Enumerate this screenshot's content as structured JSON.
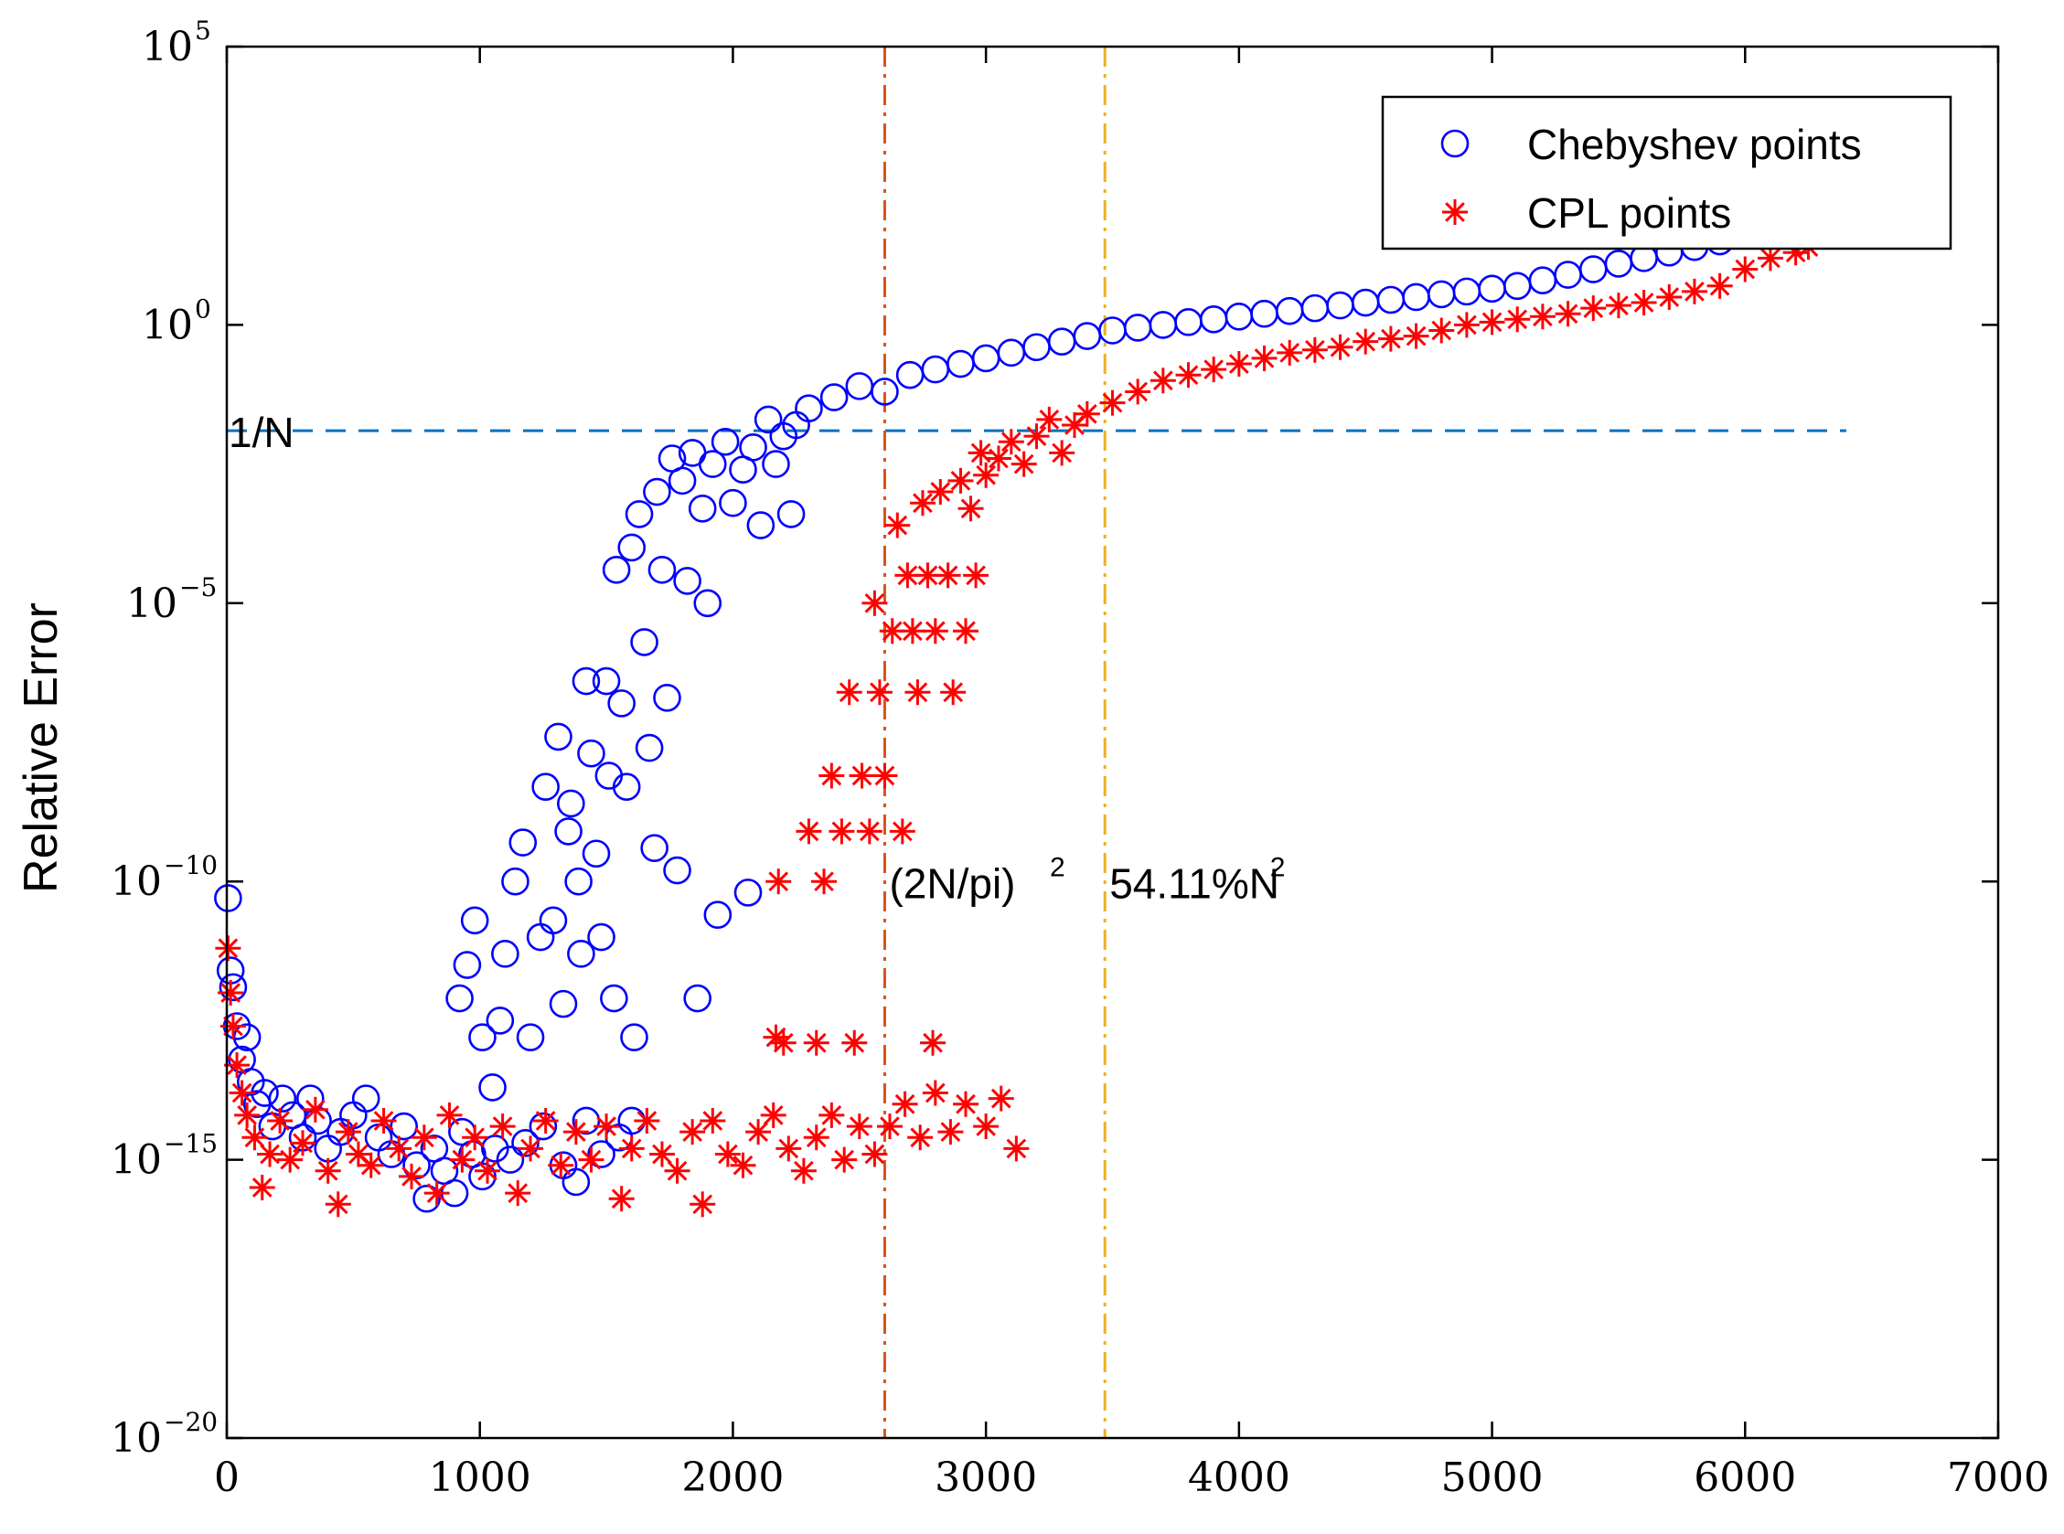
{
  "chart_data": {
    "type": "scatter",
    "title": "",
    "xlabel": "",
    "ylabel": "Relative Error",
    "xlim": [
      0,
      7000
    ],
    "ylim_exponent": [
      -20,
      5
    ],
    "yscale": "log",
    "x_ticks": [
      "0",
      "1000",
      "2000",
      "3000",
      "4000",
      "5000",
      "6000",
      "7000"
    ],
    "y_ticks": [
      {
        "base": "10",
        "exp": "5",
        "value_exp": 5
      },
      {
        "base": "10",
        "exp": "0",
        "value_exp": 0
      },
      {
        "base": "10",
        "exp": "−5",
        "value_exp": -5
      },
      {
        "base": "10",
        "exp": "−10",
        "value_exp": -10
      },
      {
        "base": "10",
        "exp": "−15",
        "value_exp": -15
      },
      {
        "base": "10",
        "exp": "−20",
        "value_exp": -20
      }
    ],
    "legend": {
      "position": "top-right",
      "entries": [
        {
          "label": "Chebyshev points",
          "marker": "circle",
          "color": "#0000ff"
        },
        {
          "label": "CPL points",
          "marker": "asterisk",
          "color": "#ff0000"
        }
      ]
    },
    "reference_lines": [
      {
        "orientation": "horizontal",
        "value_exp": -1.9,
        "style": "dashed",
        "color": "#0072bd",
        "label": "1/N",
        "x_end": 6400
      },
      {
        "orientation": "vertical",
        "value": 2600,
        "style": "dashdot",
        "color": "#d95319",
        "label_main": "(2N/pi)",
        "label_sup": "2"
      },
      {
        "orientation": "vertical",
        "value": 3470,
        "style": "dashdot",
        "color": "#edb120",
        "label_main": "54.11%N",
        "label_sup": "2"
      }
    ],
    "series": [
      {
        "name": "Chebyshev points",
        "marker": "circle",
        "color": "#0000ff",
        "points": [
          [
            5,
            -10.3
          ],
          [
            15,
            -11.6
          ],
          [
            25,
            -11.9
          ],
          [
            40,
            -12.6
          ],
          [
            60,
            -13.2
          ],
          [
            80,
            -12.8
          ],
          [
            95,
            -13.6
          ],
          [
            120,
            -14.0
          ],
          [
            150,
            -13.8
          ],
          [
            180,
            -14.4
          ],
          [
            220,
            -13.9
          ],
          [
            260,
            -14.2
          ],
          [
            300,
            -14.6
          ],
          [
            330,
            -13.9
          ],
          [
            360,
            -14.3
          ],
          [
            400,
            -14.8
          ],
          [
            450,
            -14.5
          ],
          [
            500,
            -14.2
          ],
          [
            550,
            -13.9
          ],
          [
            600,
            -14.6
          ],
          [
            650,
            -14.9
          ],
          [
            700,
            -14.4
          ],
          [
            750,
            -15.1
          ],
          [
            790,
            -15.7
          ],
          [
            820,
            -14.8
          ],
          [
            860,
            -15.2
          ],
          [
            900,
            -15.6
          ],
          [
            930,
            -14.5
          ],
          [
            970,
            -14.9
          ],
          [
            1010,
            -15.3
          ],
          [
            1060,
            -14.8
          ],
          [
            1120,
            -15.0
          ],
          [
            1180,
            -14.7
          ],
          [
            1250,
            -14.4
          ],
          [
            1330,
            -15.1
          ],
          [
            1380,
            -15.4
          ],
          [
            1420,
            -14.3
          ],
          [
            1480,
            -14.9
          ],
          [
            1550,
            -14.6
          ],
          [
            1600,
            -14.3
          ],
          [
            920,
            -12.1
          ],
          [
            950,
            -11.5
          ],
          [
            980,
            -10.7
          ],
          [
            1010,
            -12.8
          ],
          [
            1050,
            -13.7
          ],
          [
            1080,
            -12.5
          ],
          [
            1100,
            -11.3
          ],
          [
            1140,
            -10.0
          ],
          [
            1170,
            -9.3
          ],
          [
            1200,
            -12.8
          ],
          [
            1240,
            -11.0
          ],
          [
            1260,
            -8.3
          ],
          [
            1290,
            -10.7
          ],
          [
            1310,
            -7.4
          ],
          [
            1330,
            -12.2
          ],
          [
            1350,
            -9.1
          ],
          [
            1360,
            -8.6
          ],
          [
            1390,
            -10.0
          ],
          [
            1400,
            -11.3
          ],
          [
            1420,
            -6.4
          ],
          [
            1440,
            -7.7
          ],
          [
            1460,
            -9.5
          ],
          [
            1480,
            -11.0
          ],
          [
            1500,
            -6.4
          ],
          [
            1510,
            -8.1
          ],
          [
            1530,
            -12.1
          ],
          [
            1540,
            -4.4
          ],
          [
            1560,
            -6.8
          ],
          [
            1580,
            -8.3
          ],
          [
            1600,
            -4.0
          ],
          [
            1610,
            -12.8
          ],
          [
            1630,
            -3.4
          ],
          [
            1650,
            -5.7
          ],
          [
            1670,
            -7.6
          ],
          [
            1690,
            -9.4
          ],
          [
            1700,
            -3.0
          ],
          [
            1720,
            -4.4
          ],
          [
            1740,
            -6.7
          ],
          [
            1760,
            -2.4
          ],
          [
            1780,
            -9.8
          ],
          [
            1800,
            -2.8
          ],
          [
            1820,
            -4.6
          ],
          [
            1840,
            -2.3
          ],
          [
            1860,
            -12.1
          ],
          [
            1880,
            -3.3
          ],
          [
            1900,
            -5.0
          ],
          [
            1920,
            -2.5
          ],
          [
            1940,
            -10.6
          ],
          [
            1970,
            -2.1
          ],
          [
            2000,
            -3.2
          ],
          [
            2040,
            -2.6
          ],
          [
            2060,
            -10.2
          ],
          [
            2080,
            -2.2
          ],
          [
            2110,
            -3.6
          ],
          [
            2140,
            -1.7
          ],
          [
            2170,
            -2.5
          ],
          [
            2200,
            -2.0
          ],
          [
            2230,
            -3.4
          ],
          [
            2250,
            -1.8
          ],
          [
            2300,
            -1.5
          ],
          [
            2400,
            -1.3
          ],
          [
            2500,
            -1.1
          ],
          [
            2600,
            -1.2
          ],
          [
            2700,
            -0.9
          ],
          [
            2800,
            -0.8
          ],
          [
            2900,
            -0.7
          ],
          [
            3000,
            -0.6
          ],
          [
            3100,
            -0.5
          ],
          [
            3200,
            -0.4
          ],
          [
            3300,
            -0.3
          ],
          [
            3400,
            -0.2
          ],
          [
            3500,
            -0.1
          ],
          [
            3600,
            -0.05
          ],
          [
            3700,
            0.0
          ],
          [
            3800,
            0.05
          ],
          [
            3900,
            0.1
          ],
          [
            4000,
            0.15
          ],
          [
            4100,
            0.2
          ],
          [
            4200,
            0.25
          ],
          [
            4300,
            0.3
          ],
          [
            4400,
            0.35
          ],
          [
            4500,
            0.4
          ],
          [
            4600,
            0.45
          ],
          [
            4700,
            0.5
          ],
          [
            4800,
            0.55
          ],
          [
            4900,
            0.6
          ],
          [
            5000,
            0.65
          ],
          [
            5100,
            0.7
          ],
          [
            5200,
            0.8
          ],
          [
            5300,
            0.9
          ],
          [
            5400,
            1.0
          ],
          [
            5500,
            1.1
          ],
          [
            5600,
            1.2
          ],
          [
            5700,
            1.3
          ],
          [
            5800,
            1.4
          ],
          [
            5900,
            1.5
          ]
        ]
      },
      {
        "name": "CPL points",
        "marker": "asterisk",
        "color": "#ff0000",
        "points": [
          [
            5,
            -11.2
          ],
          [
            15,
            -12.0
          ],
          [
            25,
            -12.6
          ],
          [
            40,
            -13.3
          ],
          [
            60,
            -13.8
          ],
          [
            80,
            -14.2
          ],
          [
            110,
            -14.6
          ],
          [
            140,
            -15.5
          ],
          [
            170,
            -14.9
          ],
          [
            210,
            -14.3
          ],
          [
            250,
            -15.0
          ],
          [
            300,
            -14.7
          ],
          [
            350,
            -14.1
          ],
          [
            400,
            -15.2
          ],
          [
            440,
            -15.8
          ],
          [
            480,
            -14.5
          ],
          [
            520,
            -14.9
          ],
          [
            570,
            -15.1
          ],
          [
            620,
            -14.3
          ],
          [
            680,
            -14.8
          ],
          [
            730,
            -15.3
          ],
          [
            780,
            -14.6
          ],
          [
            830,
            -15.6
          ],
          [
            880,
            -14.2
          ],
          [
            930,
            -15.0
          ],
          [
            980,
            -14.6
          ],
          [
            1030,
            -15.2
          ],
          [
            1090,
            -14.4
          ],
          [
            1150,
            -15.6
          ],
          [
            1200,
            -14.8
          ],
          [
            1260,
            -14.3
          ],
          [
            1320,
            -15.1
          ],
          [
            1380,
            -14.5
          ],
          [
            1440,
            -15.0
          ],
          [
            1500,
            -14.4
          ],
          [
            1560,
            -15.7
          ],
          [
            1600,
            -14.8
          ],
          [
            1660,
            -14.3
          ],
          [
            1720,
            -14.9
          ],
          [
            1780,
            -15.2
          ],
          [
            1840,
            -14.5
          ],
          [
            1880,
            -15.8
          ],
          [
            1920,
            -14.3
          ],
          [
            1980,
            -14.9
          ],
          [
            2040,
            -15.1
          ],
          [
            2100,
            -14.5
          ],
          [
            2160,
            -14.2
          ],
          [
            2220,
            -14.8
          ],
          [
            2280,
            -15.2
          ],
          [
            2330,
            -14.6
          ],
          [
            2390,
            -14.2
          ],
          [
            2440,
            -15.0
          ],
          [
            2500,
            -14.4
          ],
          [
            2560,
            -14.9
          ],
          [
            2620,
            -14.4
          ],
          [
            2680,
            -14.0
          ],
          [
            2740,
            -14.6
          ],
          [
            2800,
            -13.8
          ],
          [
            2860,
            -14.5
          ],
          [
            2920,
            -14.0
          ],
          [
            3000,
            -14.4
          ],
          [
            3060,
            -13.9
          ],
          [
            3120,
            -14.8
          ],
          [
            2170,
            -12.8
          ],
          [
            2180,
            -10.0
          ],
          [
            2200,
            -12.9
          ],
          [
            2300,
            -9.1
          ],
          [
            2330,
            -12.9
          ],
          [
            2360,
            -10.0
          ],
          [
            2390,
            -8.1
          ],
          [
            2430,
            -9.1
          ],
          [
            2460,
            -6.6
          ],
          [
            2480,
            -12.9
          ],
          [
            2510,
            -8.1
          ],
          [
            2540,
            -9.1
          ],
          [
            2560,
            -5.0
          ],
          [
            2580,
            -6.6
          ],
          [
            2600,
            -8.1
          ],
          [
            2630,
            -5.5
          ],
          [
            2650,
            -3.6
          ],
          [
            2670,
            -9.1
          ],
          [
            2690,
            -4.5
          ],
          [
            2710,
            -5.5
          ],
          [
            2730,
            -6.6
          ],
          [
            2750,
            -3.2
          ],
          [
            2770,
            -4.5
          ],
          [
            2790,
            -12.9
          ],
          [
            2800,
            -5.5
          ],
          [
            2820,
            -3.0
          ],
          [
            2850,
            -4.5
          ],
          [
            2870,
            -6.6
          ],
          [
            2900,
            -2.8
          ],
          [
            2920,
            -5.5
          ],
          [
            2940,
            -3.3
          ],
          [
            2960,
            -4.5
          ],
          [
            2980,
            -2.3
          ],
          [
            3000,
            -2.7
          ],
          [
            3050,
            -2.4
          ],
          [
            3100,
            -2.1
          ],
          [
            3150,
            -2.5
          ],
          [
            3200,
            -2.0
          ],
          [
            3250,
            -1.7
          ],
          [
            3300,
            -2.3
          ],
          [
            3350,
            -1.8
          ],
          [
            3400,
            -1.6
          ],
          [
            3500,
            -1.4
          ],
          [
            3600,
            -1.2
          ],
          [
            3700,
            -1.0
          ],
          [
            3800,
            -0.9
          ],
          [
            3900,
            -0.8
          ],
          [
            4000,
            -0.7
          ],
          [
            4100,
            -0.6
          ],
          [
            4200,
            -0.5
          ],
          [
            4300,
            -0.45
          ],
          [
            4400,
            -0.4
          ],
          [
            4500,
            -0.3
          ],
          [
            4600,
            -0.25
          ],
          [
            4700,
            -0.2
          ],
          [
            4800,
            -0.1
          ],
          [
            4900,
            0.0
          ],
          [
            5000,
            0.05
          ],
          [
            5100,
            0.1
          ],
          [
            5200,
            0.15
          ],
          [
            5300,
            0.2
          ],
          [
            5400,
            0.3
          ],
          [
            5500,
            0.35
          ],
          [
            5600,
            0.4
          ],
          [
            5700,
            0.5
          ],
          [
            5800,
            0.6
          ],
          [
            5900,
            0.7
          ],
          [
            6000,
            1.0
          ],
          [
            6100,
            1.2
          ],
          [
            6200,
            1.3
          ],
          [
            6250,
            1.4
          ]
        ]
      }
    ]
  }
}
